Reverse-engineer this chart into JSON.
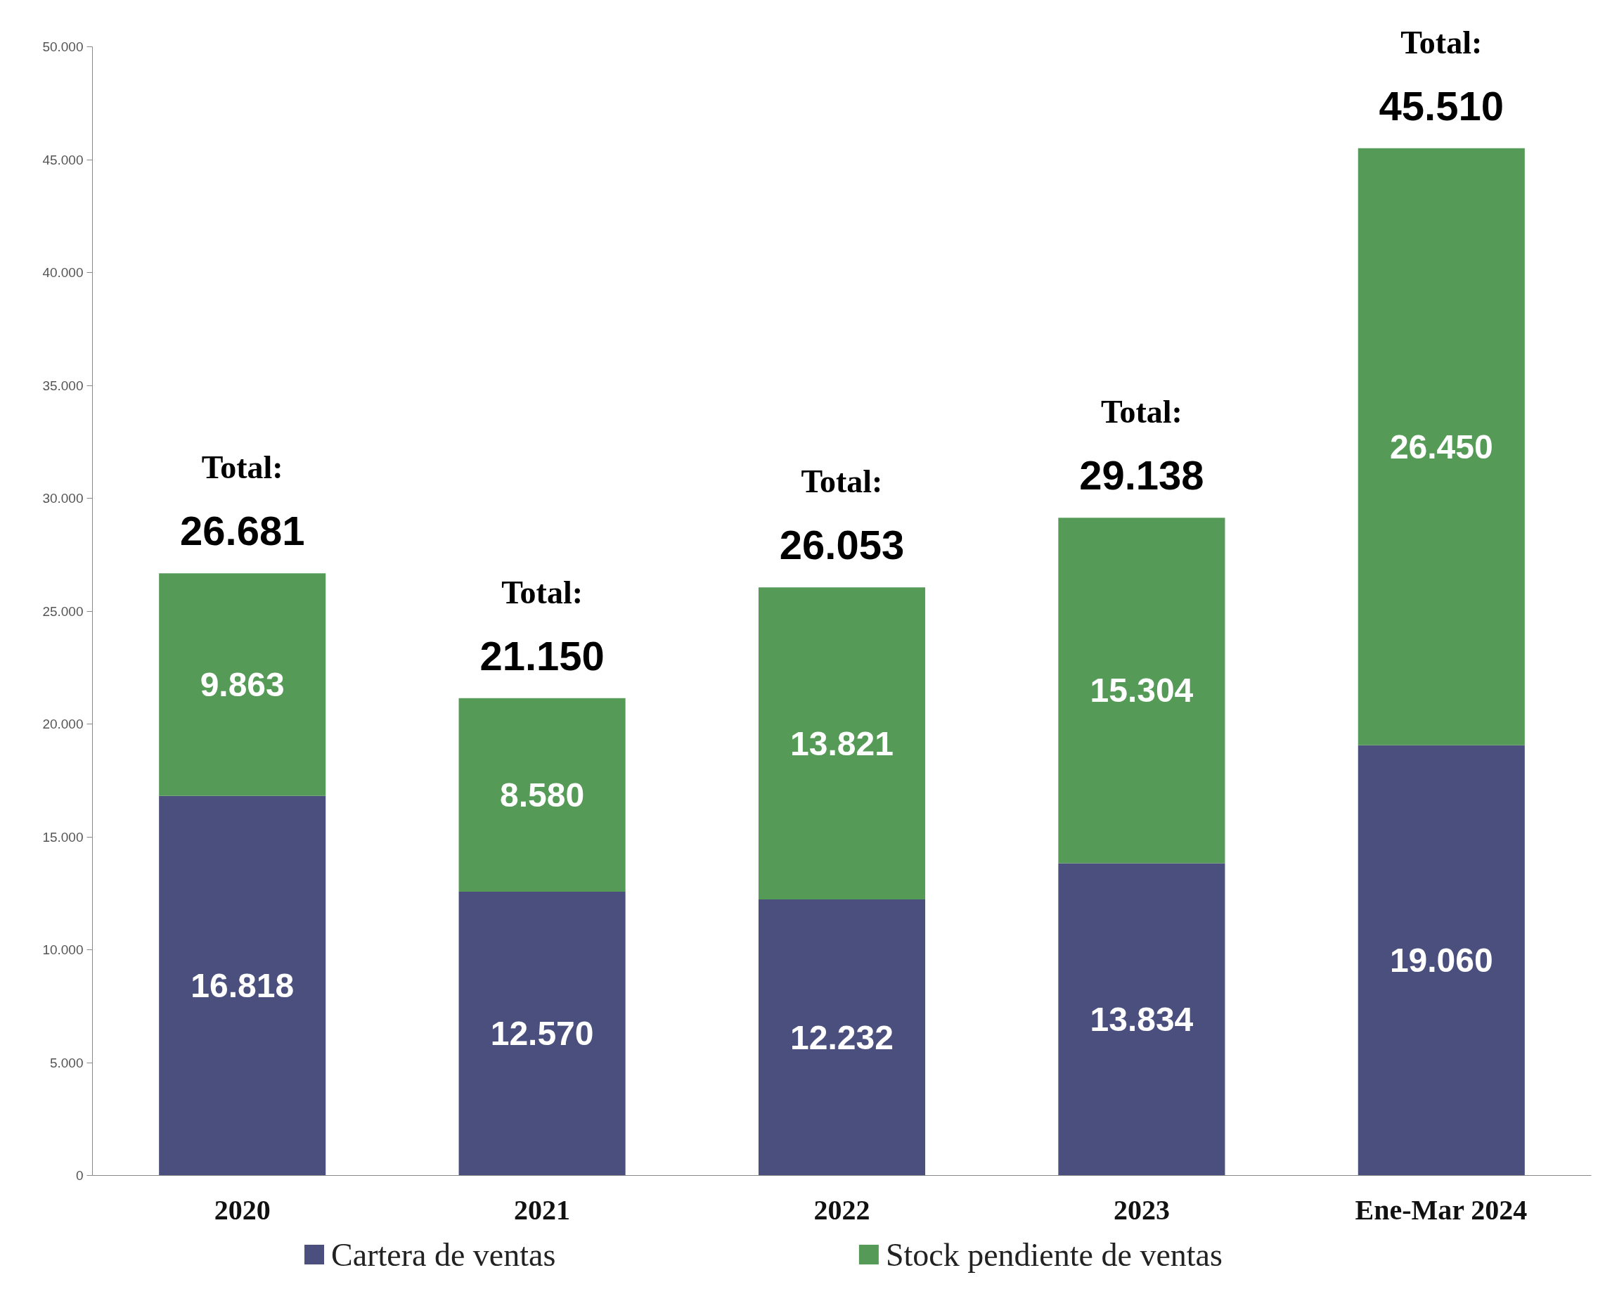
{
  "chart_data": {
    "type": "bar",
    "stacked": true,
    "categories": [
      "2020",
      "2021",
      "2022",
      "2023",
      "Ene-Mar 2024"
    ],
    "series": [
      {
        "name": "Cartera de ventas",
        "color": "#4a4f7e",
        "values": [
          16818,
          12570,
          12232,
          13834,
          19060
        ],
        "value_labels": [
          "16.818",
          "12.570",
          "12.232",
          "13.834",
          "19.060"
        ]
      },
      {
        "name": "Stock pendiente de ventas",
        "color": "#559a57",
        "values": [
          9863,
          8580,
          13821,
          15304,
          26450
        ],
        "value_labels": [
          "9.863",
          "8.580",
          "13.821",
          "15.304",
          "26.450"
        ]
      }
    ],
    "totals": [
      "Total:\n26.681",
      "Total:\n21.150",
      "Total:\n26.053",
      "Total:\n29.138",
      "Total:\n45.510"
    ],
    "ylim": [
      0,
      50000
    ],
    "yticks": [
      {
        "value": 0,
        "label": "0"
      },
      {
        "value": 5000,
        "label": "5.000"
      },
      {
        "value": 10000,
        "label": "10.000"
      },
      {
        "value": 15000,
        "label": "15.000"
      },
      {
        "value": 20000,
        "label": "20.000"
      },
      {
        "value": 25000,
        "label": "25.000"
      },
      {
        "value": 30000,
        "label": "30.000"
      },
      {
        "value": 35000,
        "label": "35.000"
      },
      {
        "value": 40000,
        "label": "40.000"
      },
      {
        "value": 45000,
        "label": "45.000"
      },
      {
        "value": 50000,
        "label": "50.000"
      }
    ],
    "grid": false,
    "legend": "bottom"
  }
}
